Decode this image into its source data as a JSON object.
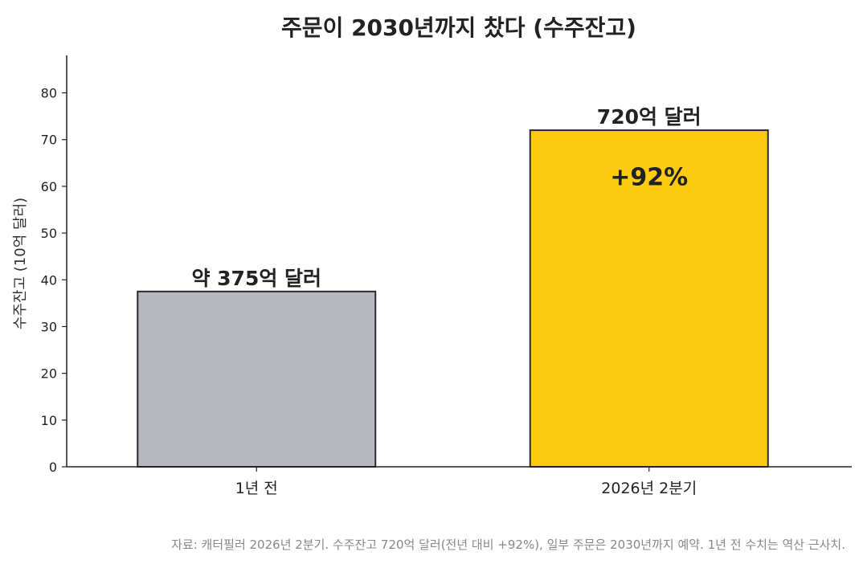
{
  "chart_data": {
    "type": "bar",
    "title": "주문이 2030년까지 찼다 (수주잔고)",
    "ylabel": "수주잔고 (10억 달러)",
    "xlabel": "",
    "ylim": [
      0,
      88
    ],
    "yticks": [
      0,
      10,
      20,
      30,
      40,
      50,
      60,
      70,
      80
    ],
    "categories": [
      "1년 전",
      "2026년 2분기"
    ],
    "values": [
      37.5,
      72
    ],
    "data_labels": [
      "약 375억 달러",
      "720억 달러"
    ],
    "bar_colors": [
      "#b7b8c0",
      "#fdcc12"
    ],
    "edge_color": "#2a2a2a",
    "annotation": {
      "text": "+92%",
      "category_index": 1,
      "y": 62
    },
    "grid": false,
    "legend": "none"
  },
  "source_note": "자료: 캐터필러 2026년 2분기. 수주잔고 720억 달러(전년 대비 +92%), 일부 주문은 2030년까지 예약. 1년 전 수치는 역산 근사치."
}
